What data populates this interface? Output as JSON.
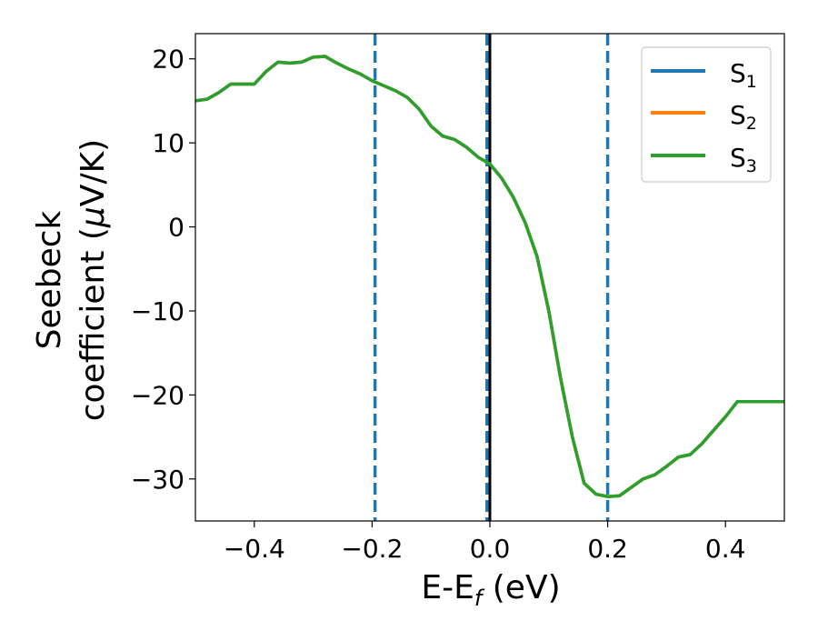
{
  "chart_data": {
    "type": "line",
    "xlabel": "E-E",
    "xlabel_sub": "f",
    "xlabel_unit": " (eV)",
    "ylabel_line1": "Seebeck",
    "ylabel_line2": "coefficient  (",
    "ylabel_mu": "μ",
    "ylabel_unit": "V/K)",
    "xlim": [
      -0.5,
      0.5
    ],
    "ylim": [
      -35,
      23
    ],
    "xticks": [
      -0.4,
      -0.2,
      0.0,
      0.2,
      0.4
    ],
    "xtick_labels": [
      "−0.4",
      "−0.2",
      "0.0",
      "0.2",
      "0.4"
    ],
    "yticks": [
      20,
      10,
      0,
      -10,
      -20,
      -30
    ],
    "ytick_labels": [
      "20",
      "10",
      "0",
      "−10",
      "−20",
      "−30"
    ],
    "legend_position": "top-right",
    "series": [
      {
        "name": "S",
        "name_sub": "1",
        "color": "#1f77b4",
        "x": [
          -0.5,
          -0.48,
          -0.46,
          -0.44,
          -0.42,
          -0.4,
          -0.38,
          -0.36,
          -0.34,
          -0.32,
          -0.3,
          -0.28,
          -0.26,
          -0.24,
          -0.22,
          -0.2,
          -0.18,
          -0.16,
          -0.14,
          -0.12,
          -0.1,
          -0.08,
          -0.06,
          -0.04,
          -0.02,
          0.0,
          0.02,
          0.04,
          0.06,
          0.08,
          0.1,
          0.12,
          0.14,
          0.16,
          0.18,
          0.2,
          0.22,
          0.24,
          0.26,
          0.28,
          0.3,
          0.32,
          0.34,
          0.36,
          0.38,
          0.4,
          0.42,
          0.44,
          0.46,
          0.48,
          0.5
        ],
        "y": [
          15.0,
          15.2,
          16.0,
          17.0,
          17.0,
          17.0,
          18.5,
          19.6,
          19.5,
          19.6,
          20.2,
          20.3,
          19.5,
          18.8,
          18.2,
          17.4,
          16.8,
          16.2,
          15.4,
          14.0,
          12.0,
          10.8,
          10.4,
          9.5,
          8.3,
          7.5,
          5.8,
          3.5,
          0.5,
          -3.5,
          -10.0,
          -18.0,
          -25.0,
          -30.5,
          -31.8,
          -32.1,
          -32.0,
          -31.0,
          -30.0,
          -29.5,
          -28.5,
          -27.4,
          -27.1,
          -25.8,
          -24.2,
          -22.6,
          -20.8,
          -20.8,
          -20.8,
          -20.8,
          -20.8
        ]
      },
      {
        "name": "S",
        "name_sub": "2",
        "color": "#ff7f0e",
        "x": [
          -0.5,
          -0.48,
          -0.46,
          -0.44,
          -0.42,
          -0.4,
          -0.38,
          -0.36,
          -0.34,
          -0.32,
          -0.3,
          -0.28,
          -0.26,
          -0.24,
          -0.22,
          -0.2,
          -0.18,
          -0.16,
          -0.14,
          -0.12,
          -0.1,
          -0.08,
          -0.06,
          -0.04,
          -0.02,
          0.0,
          0.02,
          0.04,
          0.06,
          0.08,
          0.1,
          0.12,
          0.14,
          0.16,
          0.18,
          0.2,
          0.22,
          0.24,
          0.26,
          0.28,
          0.3,
          0.32,
          0.34,
          0.36,
          0.38,
          0.4,
          0.42,
          0.44,
          0.46,
          0.48,
          0.5
        ],
        "y": [
          15.0,
          15.2,
          16.0,
          17.0,
          17.0,
          17.0,
          18.5,
          19.6,
          19.5,
          19.6,
          20.2,
          20.3,
          19.5,
          18.8,
          18.2,
          17.4,
          16.8,
          16.2,
          15.4,
          14.0,
          12.0,
          10.8,
          10.4,
          9.5,
          8.3,
          7.5,
          5.8,
          3.5,
          0.5,
          -3.5,
          -10.0,
          -18.0,
          -25.0,
          -30.5,
          -31.8,
          -32.1,
          -32.0,
          -31.0,
          -30.0,
          -29.5,
          -28.5,
          -27.4,
          -27.1,
          -25.8,
          -24.2,
          -22.6,
          -20.8,
          -20.8,
          -20.8,
          -20.8,
          -20.8
        ]
      },
      {
        "name": "S",
        "name_sub": "3",
        "color": "#2ca02c",
        "x": [
          -0.5,
          -0.48,
          -0.46,
          -0.44,
          -0.42,
          -0.4,
          -0.38,
          -0.36,
          -0.34,
          -0.32,
          -0.3,
          -0.28,
          -0.26,
          -0.24,
          -0.22,
          -0.2,
          -0.18,
          -0.16,
          -0.14,
          -0.12,
          -0.1,
          -0.08,
          -0.06,
          -0.04,
          -0.02,
          0.0,
          0.02,
          0.04,
          0.06,
          0.08,
          0.1,
          0.12,
          0.14,
          0.16,
          0.18,
          0.2,
          0.22,
          0.24,
          0.26,
          0.28,
          0.3,
          0.32,
          0.34,
          0.36,
          0.38,
          0.4,
          0.42,
          0.44,
          0.46,
          0.48,
          0.5
        ],
        "y": [
          15.0,
          15.2,
          16.0,
          17.0,
          17.0,
          17.0,
          18.5,
          19.6,
          19.5,
          19.6,
          20.2,
          20.3,
          19.5,
          18.8,
          18.2,
          17.4,
          16.8,
          16.2,
          15.4,
          14.0,
          12.0,
          10.8,
          10.4,
          9.5,
          8.3,
          7.5,
          5.8,
          3.5,
          0.5,
          -3.5,
          -10.0,
          -18.0,
          -25.0,
          -30.5,
          -31.8,
          -32.1,
          -32.0,
          -31.0,
          -30.0,
          -29.5,
          -28.5,
          -27.4,
          -27.1,
          -25.8,
          -24.2,
          -22.6,
          -20.8,
          -20.8,
          -20.8,
          -20.8,
          -20.8
        ]
      }
    ],
    "vlines": [
      {
        "x": -0.195,
        "style": "dashed",
        "color": "#1f77b4"
      },
      {
        "x": -0.005,
        "style": "dashed",
        "color": "#1f77b4"
      },
      {
        "x": 0.2,
        "style": "dashed",
        "color": "#1f77b4"
      },
      {
        "x": 0.0,
        "style": "solid",
        "color": "#000000"
      }
    ]
  }
}
